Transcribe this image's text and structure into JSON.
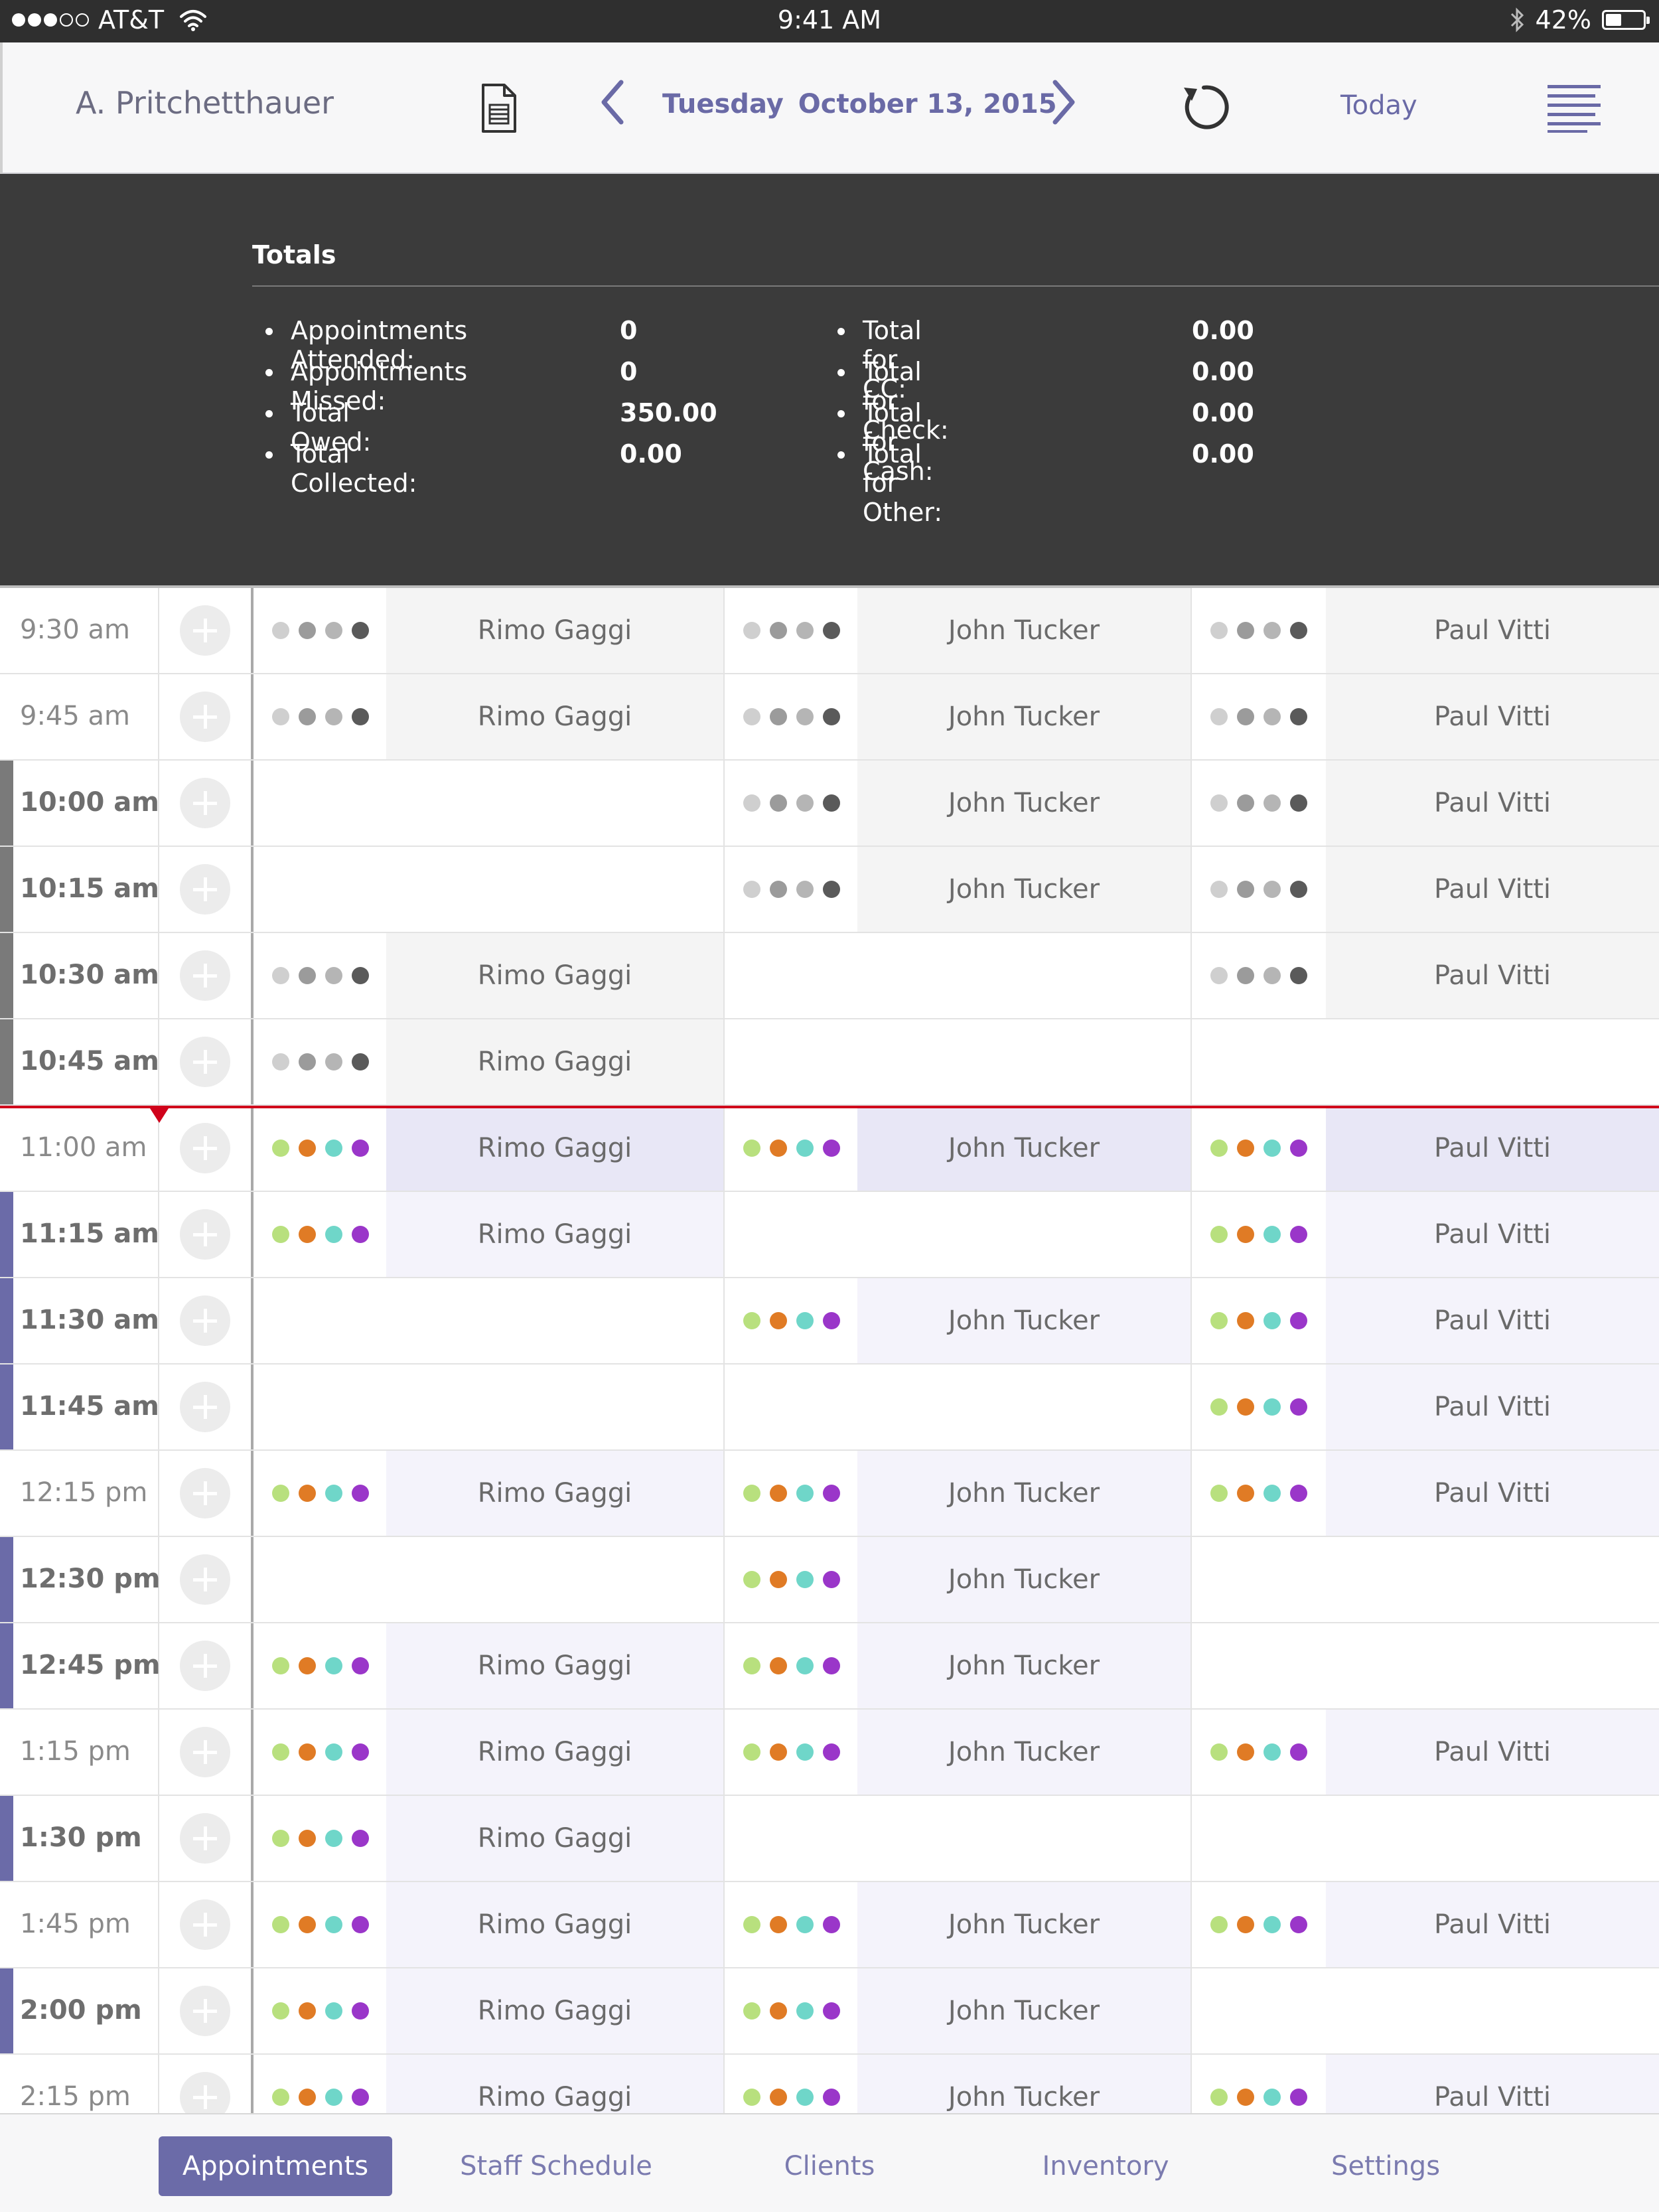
{
  "status_bar": {
    "carrier": "AT&T",
    "time": "9:41 AM",
    "battery": "42%",
    "battery_level": 0.42,
    "signal_bars_filled": 3,
    "signal_bars_total": 5
  },
  "nav": {
    "user": "A. Pritchetthauer",
    "weekday": "Tuesday",
    "date": "October 13, 2015",
    "today_label": "Today"
  },
  "totals": {
    "title": "Totals",
    "left": [
      {
        "label": "Appointments Attended:",
        "value": "0"
      },
      {
        "label": "Appointments Missed:",
        "value": "0"
      },
      {
        "label": "Total Owed:",
        "value": "350.00"
      },
      {
        "label": "Total Collected:",
        "value": "0.00"
      }
    ],
    "right": [
      {
        "label": "Total for CC:",
        "value": "0.00"
      },
      {
        "label": "Total for Check:",
        "value": "0.00"
      },
      {
        "label": "Total for Cash:",
        "value": "0.00"
      },
      {
        "label": "Total for Other:",
        "value": "0.00"
      }
    ]
  },
  "colors": {
    "accent": "#6b6ba8",
    "mark_past": "#7a7a7a",
    "mark_future": "#6b6ba8",
    "now_line": "#d0021b",
    "past_dots": [
      "#cfcfcf",
      "#9b9b9b",
      "#b5b5b5",
      "#5a5a5a"
    ],
    "future_dots": [
      "#b8e07e",
      "#e07b25",
      "#6fd6c9",
      "#9a36c9"
    ],
    "past_fill": "#f4f4f4",
    "future_fill": "#f4f3fb",
    "current_fill": "#e8e7f6"
  },
  "staff": [
    "Rimo Gaggi",
    "John Tucker",
    "Paul Vitti"
  ],
  "schedule": [
    {
      "time": "9:30 am",
      "bold": false,
      "period": "past",
      "slots": [
        true,
        true,
        true
      ]
    },
    {
      "time": "9:45 am",
      "bold": false,
      "period": "past",
      "slots": [
        true,
        true,
        true
      ]
    },
    {
      "time": "10:00 am",
      "bold": true,
      "period": "past",
      "slots": [
        false,
        true,
        true
      ]
    },
    {
      "time": "10:15 am",
      "bold": true,
      "period": "past",
      "slots": [
        false,
        true,
        true
      ]
    },
    {
      "time": "10:30 am",
      "bold": true,
      "period": "past",
      "slots": [
        true,
        false,
        true
      ]
    },
    {
      "time": "10:45 am",
      "bold": true,
      "period": "past",
      "slots": [
        true,
        false,
        false
      ]
    },
    {
      "time": "11:00 am",
      "bold": false,
      "period": "current",
      "slots": [
        true,
        true,
        true
      ]
    },
    {
      "time": "11:15 am",
      "bold": true,
      "period": "future",
      "slots": [
        true,
        false,
        true
      ]
    },
    {
      "time": "11:30 am",
      "bold": true,
      "period": "future",
      "slots": [
        false,
        true,
        true
      ]
    },
    {
      "time": "11:45 am",
      "bold": true,
      "period": "future",
      "slots": [
        false,
        false,
        true
      ]
    },
    {
      "time": "12:15 pm",
      "bold": false,
      "period": "future",
      "slots": [
        true,
        true,
        true
      ]
    },
    {
      "time": "12:30 pm",
      "bold": true,
      "period": "future",
      "slots": [
        false,
        true,
        false
      ]
    },
    {
      "time": "12:45 pm",
      "bold": true,
      "period": "future",
      "slots": [
        true,
        true,
        false
      ]
    },
    {
      "time": "1:15 pm",
      "bold": false,
      "period": "future",
      "slots": [
        true,
        true,
        true
      ]
    },
    {
      "time": "1:30 pm",
      "bold": true,
      "period": "future",
      "slots": [
        true,
        false,
        false
      ]
    },
    {
      "time": "1:45 pm",
      "bold": false,
      "period": "future",
      "slots": [
        true,
        true,
        true
      ]
    },
    {
      "time": "2:00 pm",
      "bold": true,
      "period": "future",
      "slots": [
        true,
        true,
        false
      ]
    },
    {
      "time": "2:15 pm",
      "bold": false,
      "period": "future",
      "slots": [
        true,
        true,
        true
      ]
    }
  ],
  "tabs": [
    {
      "label": "Appointments",
      "active": true
    },
    {
      "label": "Staff Schedule",
      "active": false
    },
    {
      "label": "Clients",
      "active": false
    },
    {
      "label": "Inventory",
      "active": false
    },
    {
      "label": "Settings",
      "active": false
    }
  ]
}
